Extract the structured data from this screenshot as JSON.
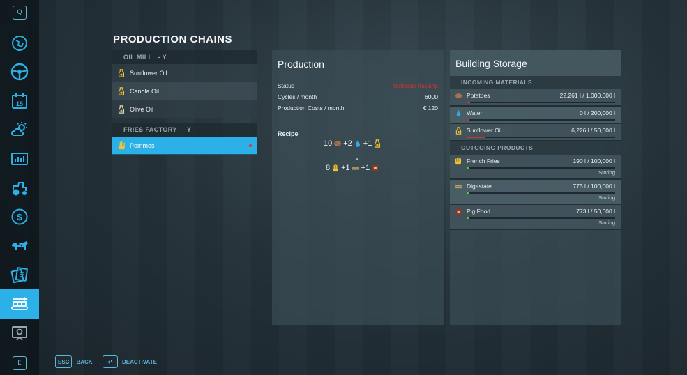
{
  "sidebar": {
    "top_key": "Q",
    "bottom_key": "E",
    "items": [
      {
        "icon": "map-icon"
      },
      {
        "icon": "steering-wheel-icon"
      },
      {
        "icon": "calendar-icon",
        "label": "15"
      },
      {
        "icon": "weather-icon"
      },
      {
        "icon": "statistics-icon"
      },
      {
        "icon": "tractor-icon"
      },
      {
        "icon": "finances-icon"
      },
      {
        "icon": "animals-icon"
      },
      {
        "icon": "contracts-icon"
      },
      {
        "icon": "production-icon"
      },
      {
        "icon": "help-icon"
      }
    ],
    "active_index": 9
  },
  "page_title": "PRODUCTION CHAINS",
  "chains": {
    "groups": [
      {
        "name": "OIL MILL",
        "key": "- Y",
        "items": [
          {
            "label": "Sunflower Oil",
            "icon": "oil-bottle-icon"
          },
          {
            "label": "Canola Oil",
            "icon": "oil-bottle-icon"
          },
          {
            "label": "Olive Oil",
            "icon": "oil-bottle-icon"
          }
        ]
      },
      {
        "name": "FRIES FACTORY",
        "key": "- Y",
        "items": [
          {
            "label": "Pommes",
            "icon": "fries-icon",
            "selected": true,
            "alert": true
          }
        ]
      }
    ]
  },
  "production": {
    "title": "Production",
    "rows": [
      {
        "label": "Status",
        "value": "Materials missing"
      },
      {
        "label": "Cycles / month",
        "value": "6000"
      },
      {
        "label": "Production Costs / month",
        "value": "€ 120"
      }
    ],
    "recipe_label": "Recipe",
    "recipe_inputs": [
      "10",
      "+2",
      "+1"
    ],
    "recipe_outputs": [
      "8",
      "+1",
      "+1"
    ],
    "status_color": "#d8322a"
  },
  "storage": {
    "title": "Building Storage",
    "incoming_header": "INCOMING MATERIALS",
    "incoming": [
      {
        "name": "Potatoes",
        "amount": "22,261 l / 1,000,000 l",
        "icon": "potato-icon",
        "fill": 0.022,
        "color": "#d8322a"
      },
      {
        "name": "Water",
        "amount": "0 l / 200,000 l",
        "icon": "water-drop-icon",
        "fill": 0.0,
        "color": "#d8322a"
      },
      {
        "name": "Sunflower Oil",
        "amount": "6,226 l / 50,000 l",
        "icon": "oil-bottle-icon",
        "fill": 0.125,
        "color": "#d8322a"
      }
    ],
    "outgoing_header": "OUTGOING PRODUCTS",
    "outgoing": [
      {
        "name": "French Fries",
        "amount": "190 l / 100,000 l",
        "icon": "fries-icon",
        "fill": 0.002,
        "color": "#4bd13a",
        "status": "Storing"
      },
      {
        "name": "Digestate",
        "amount": "773 l / 100,000 l",
        "icon": "digestate-icon",
        "fill": 0.008,
        "color": "#4bd13a",
        "status": "Storing"
      },
      {
        "name": "Pig Food",
        "amount": "773 l / 50,000 l",
        "icon": "pig-food-icon",
        "fill": 0.015,
        "color": "#4bd13a",
        "status": "Storing"
      }
    ]
  },
  "footer": {
    "back_key": "ESC",
    "back_label": "BACK",
    "deactivate_key": "↵",
    "deactivate_label": "DEACTIVATE"
  },
  "accent_color": "#2bb0e8"
}
